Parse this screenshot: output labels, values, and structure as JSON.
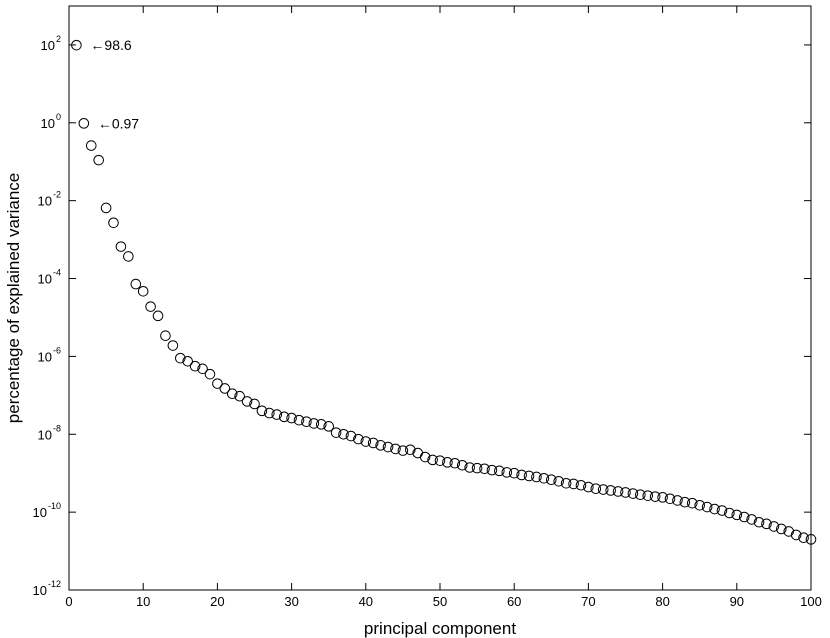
{
  "chart_data": {
    "type": "scatter",
    "title": "",
    "xlabel": "principal component",
    "ylabel": "percentage of explained variance",
    "xlim": [
      0,
      100
    ],
    "ylim_log10": [
      -12,
      3
    ],
    "yscale": "log",
    "grid": false,
    "marker": "open-circle",
    "x_ticks": [
      0,
      10,
      20,
      30,
      40,
      50,
      60,
      70,
      80,
      90,
      100
    ],
    "y_tick_exponents": [
      2,
      0,
      -2,
      -4,
      -6,
      -8,
      -10,
      -12
    ],
    "y_tick_base": "10",
    "annotations": [
      {
        "text": "←98.6",
        "x": 1,
        "y": 98.6
      },
      {
        "text": "←0.97",
        "x": 2,
        "y": 0.97
      }
    ],
    "x": [
      1,
      2,
      3,
      4,
      5,
      6,
      7,
      8,
      9,
      10,
      11,
      12,
      13,
      14,
      15,
      16,
      17,
      18,
      19,
      20,
      21,
      22,
      23,
      24,
      25,
      26,
      27,
      28,
      29,
      30,
      31,
      32,
      33,
      34,
      35,
      36,
      37,
      38,
      39,
      40,
      41,
      42,
      43,
      44,
      45,
      46,
      47,
      48,
      49,
      50,
      51,
      52,
      53,
      54,
      55,
      56,
      57,
      58,
      59,
      60,
      61,
      62,
      63,
      64,
      65,
      66,
      67,
      68,
      69,
      70,
      71,
      72,
      73,
      74,
      75,
      76,
      77,
      78,
      79,
      80,
      81,
      82,
      83,
      84,
      85,
      86,
      87,
      88,
      89,
      90,
      91,
      92,
      93,
      94,
      95,
      96,
      97,
      98,
      99,
      100
    ],
    "y": [
      98.6,
      0.97,
      0.26,
      0.11,
      0.0065,
      0.0027,
      0.00066,
      0.00037,
      7.2e-05,
      4.7e-05,
      1.9e-05,
      1.1e-05,
      3.4e-06,
      1.9e-06,
      9e-07,
      7.5e-07,
      5.6e-07,
      4.8e-07,
      3.5e-07,
      2e-07,
      1.5e-07,
      1.1e-07,
      9.5e-08,
      7e-08,
      6e-08,
      4e-08,
      3.5e-08,
      3.2e-08,
      2.8e-08,
      2.6e-08,
      2.3e-08,
      2.1e-08,
      1.9e-08,
      1.8e-08,
      1.6e-08,
      1.1e-08,
      1e-08,
      9e-09,
      7.5e-09,
      6.5e-09,
      6e-09,
      5.2e-09,
      4.7e-09,
      4.2e-09,
      3.8e-09,
      4e-09,
      3.3e-09,
      2.6e-09,
      2.2e-09,
      2.1e-09,
      1.9e-09,
      1.8e-09,
      1.6e-09,
      1.4e-09,
      1.35e-09,
      1.3e-09,
      1.2e-09,
      1.15e-09,
      1.05e-09,
      1e-09,
      9e-10,
      8.5e-10,
      8e-10,
      7.4e-10,
      6.8e-10,
      6.2e-10,
      5.5e-10,
      5.3e-10,
      4.9e-10,
      4.4e-10,
      4e-10,
      3.8e-10,
      3.6e-10,
      3.4e-10,
      3.2e-10,
      3e-10,
      2.8e-10,
      2.65e-10,
      2.5e-10,
      2.4e-10,
      2.2e-10,
      2e-10,
      1.8e-10,
      1.7e-10,
      1.5e-10,
      1.35e-10,
      1.2e-10,
      1.1e-10,
      9.5e-11,
      8.5e-11,
      7.5e-11,
      6.5e-11,
      5.5e-11,
      5e-11,
      4.3e-11,
      3.7e-11,
      3.2e-11,
      2.6e-11,
      2.2e-11,
      2e-11
    ]
  }
}
